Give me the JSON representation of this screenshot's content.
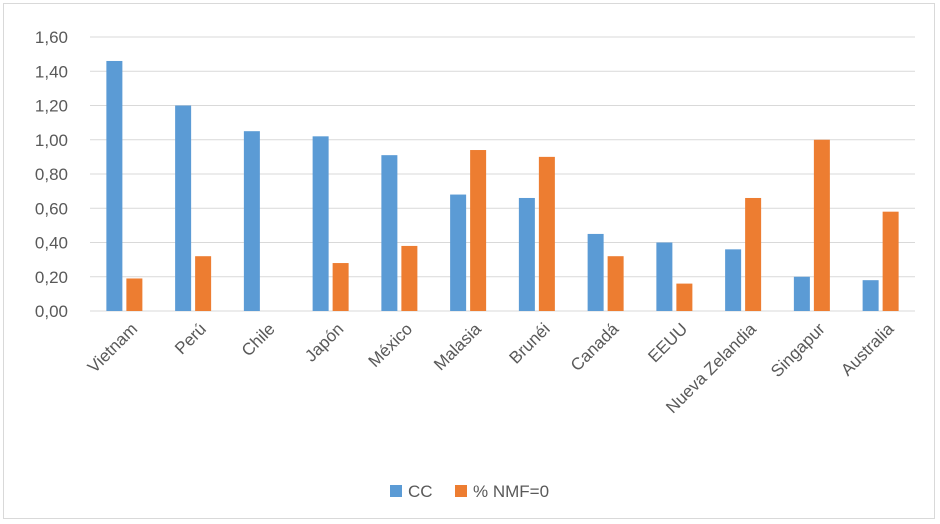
{
  "chart_data": {
    "type": "bar",
    "categories": [
      "Vietnam",
      "Perú",
      "Chile",
      "Japón",
      "México",
      "Malasia",
      "Brunéi",
      "Canadá",
      "EEUU",
      "Nueva Zelandia",
      "Singapur",
      "Australia"
    ],
    "series": [
      {
        "name": "CC",
        "color": "#5b9bd5",
        "values": [
          1.46,
          1.2,
          1.05,
          1.02,
          0.91,
          0.68,
          0.66,
          0.45,
          0.4,
          0.36,
          0.2,
          0.18
        ]
      },
      {
        "name": "% NMF=0",
        "color": "#ed7d31",
        "values": [
          0.19,
          0.32,
          null,
          0.28,
          0.38,
          0.94,
          0.9,
          0.32,
          0.16,
          0.66,
          1.0,
          0.58
        ]
      }
    ],
    "y_ticks": [
      "0,00",
      "0,20",
      "0,40",
      "0,60",
      "0,80",
      "1,00",
      "1,20",
      "1,40",
      "1,60"
    ],
    "ylim": [
      0,
      1.6
    ],
    "grid": true,
    "legend_position": "bottom",
    "title": "",
    "xlabel": "",
    "ylabel": ""
  }
}
